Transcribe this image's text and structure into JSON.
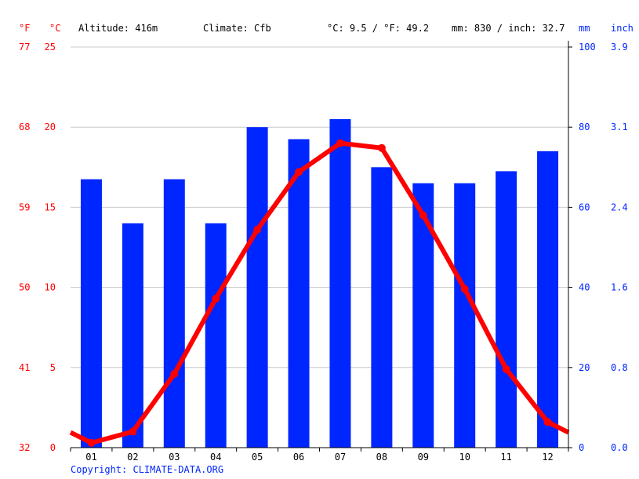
{
  "chart_data": {
    "type": "bar+line",
    "header": {
      "f_unit": "°F",
      "c_unit": "°C",
      "altitude": "Altitude: 416m",
      "climate": "Climate: Cfb",
      "temp_avg": "°C: 9.5 / °F: 49.2",
      "precip_total": "mm: 830 / inch: 32.7",
      "mm_unit": "mm",
      "inch_unit": "inch"
    },
    "categories": [
      "01",
      "02",
      "03",
      "04",
      "05",
      "06",
      "07",
      "08",
      "09",
      "10",
      "11",
      "12"
    ],
    "series": [
      {
        "type": "bar",
        "axis": "mm",
        "color": "#0026ff",
        "values": [
          67,
          56,
          67,
          56,
          80,
          77,
          82,
          70,
          66,
          66,
          69,
          74
        ]
      },
      {
        "type": "line",
        "axis": "°C",
        "color": "#ff0000",
        "values": [
          0.3,
          1.0,
          4.6,
          9.3,
          13.6,
          17.2,
          19.0,
          18.7,
          14.5,
          9.9,
          4.9,
          1.6
        ]
      }
    ],
    "left_axis_c": {
      "ticks": [
        "0",
        "5",
        "10",
        "15",
        "20",
        "25"
      ],
      "range": [
        0,
        25
      ]
    },
    "left_axis_f": {
      "ticks": [
        "32",
        "41",
        "50",
        "59",
        "68",
        "77"
      ]
    },
    "right_axis_mm": {
      "ticks": [
        "0",
        "20",
        "40",
        "60",
        "80",
        "100"
      ],
      "range": [
        0,
        100
      ]
    },
    "right_axis_inch": {
      "ticks": [
        "0.0",
        "0.8",
        "1.6",
        "2.4",
        "3.1",
        "3.9"
      ]
    },
    "grid": true,
    "copyright": "Copyright: CLIMATE-DATA.ORG"
  }
}
